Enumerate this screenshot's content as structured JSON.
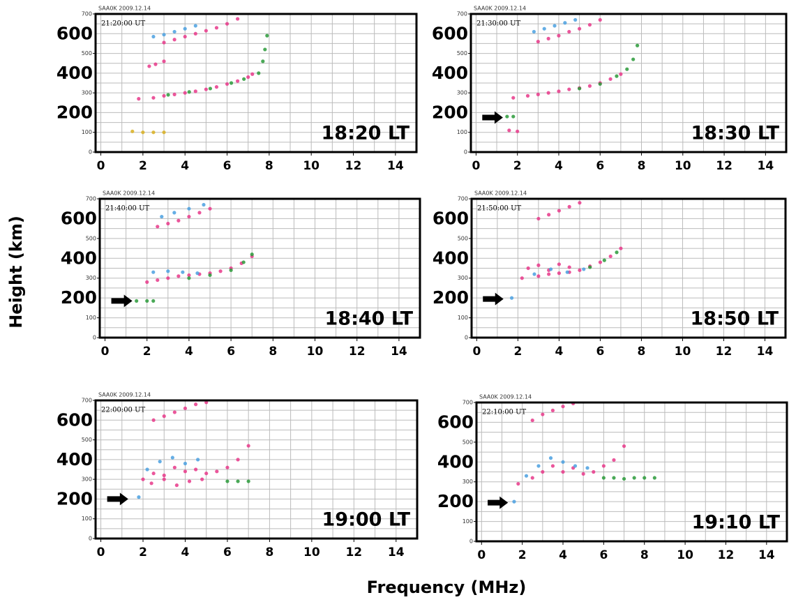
{
  "y_label": "Height (km)",
  "x_label": "Frequency (MHz)",
  "chart_data": [
    {
      "type": "scatter",
      "station": "SAA0K 2009.12.14",
      "ut": "21:20:00 UT",
      "lt": "18:20 LT",
      "xlim": [
        -0.25,
        15
      ],
      "ylim": [
        0,
        700
      ],
      "xticks": [
        0,
        2,
        4,
        6,
        8,
        10,
        12,
        14
      ],
      "yticks": [
        0,
        100,
        300,
        500,
        700
      ],
      "major_yticks": [
        200,
        400,
        600
      ],
      "xgrid": [
        0,
        1,
        2,
        3,
        4,
        5,
        6,
        7,
        8,
        9,
        10,
        11,
        12,
        13,
        14,
        15
      ],
      "ygrid": [
        50,
        100,
        150,
        200,
        250,
        300,
        350,
        400,
        450,
        500,
        550,
        600,
        650
      ],
      "series": [
        {
          "color": "#e8388a",
          "x": [
            1.8,
            2.5,
            3,
            3.5,
            4,
            4.5,
            5,
            5.5,
            6,
            6.5,
            7,
            7.2
          ],
          "y": [
            270,
            275,
            285,
            292,
            300,
            308,
            318,
            330,
            345,
            360,
            380,
            395
          ]
        },
        {
          "color": "#2a9a3a",
          "x": [
            3.2,
            4.2,
            5.2,
            6.2,
            6.8,
            7.5,
            7.7,
            7.8,
            7.9
          ],
          "y": [
            290,
            305,
            322,
            350,
            370,
            400,
            460,
            520,
            590
          ]
        },
        {
          "color": "#e8388a",
          "x": [
            3,
            3.5,
            4,
            4.5,
            5,
            5.5,
            6,
            6.5
          ],
          "y": [
            555,
            570,
            585,
            600,
            615,
            630,
            650,
            675
          ]
        },
        {
          "color": "#4aa0e0",
          "x": [
            2.5,
            3,
            3.5,
            4,
            4.5
          ],
          "y": [
            585,
            595,
            610,
            625,
            640
          ]
        },
        {
          "color": "#e8388a",
          "x": [
            2.3,
            2.6,
            3
          ],
          "y": [
            435,
            445,
            460
          ]
        },
        {
          "color": "#d9b020",
          "x": [
            1.5,
            2,
            2.5,
            3
          ],
          "y": [
            105,
            100,
            100,
            100
          ]
        }
      ]
    },
    {
      "type": "scatter",
      "station": "SAA0K 2009.12.14",
      "ut": "21:30:00 UT",
      "lt": "18:30 LT",
      "xlim": [
        -0.25,
        15
      ],
      "ylim": [
        0,
        700
      ],
      "xticks": [
        0,
        2,
        4,
        6,
        8,
        10,
        12,
        14
      ],
      "yticks": [
        0,
        100,
        300,
        500,
        700
      ],
      "major_yticks": [
        200,
        400,
        600
      ],
      "xgrid": [
        0,
        1,
        2,
        3,
        4,
        5,
        6,
        7,
        8,
        9,
        10,
        11,
        12,
        13,
        14,
        15
      ],
      "ygrid": [
        50,
        100,
        150,
        200,
        250,
        300,
        350,
        400,
        450,
        500,
        550,
        600,
        650
      ],
      "arrow_y": 175,
      "series": [
        {
          "color": "#e8388a",
          "x": [
            1.8,
            2.5,
            3,
            3.5,
            4,
            4.5,
            5,
            5.5,
            6,
            6.5,
            7
          ],
          "y": [
            275,
            285,
            292,
            300,
            308,
            318,
            325,
            335,
            350,
            370,
            395
          ]
        },
        {
          "color": "#2a9a3a",
          "x": [
            5,
            6,
            6.8,
            7.3,
            7.6,
            7.8
          ],
          "y": [
            322,
            345,
            385,
            420,
            470,
            540
          ]
        },
        {
          "color": "#e8388a",
          "x": [
            3,
            3.5,
            4,
            4.5,
            5,
            5.5,
            6
          ],
          "y": [
            560,
            575,
            590,
            610,
            625,
            645,
            670
          ]
        },
        {
          "color": "#4aa0e0",
          "x": [
            2.8,
            3.3,
            3.8,
            4.3,
            4.8
          ],
          "y": [
            610,
            625,
            640,
            655,
            670
          ]
        },
        {
          "color": "#2a9a3a",
          "x": [
            1.5,
            1.8
          ],
          "y": [
            180,
            180
          ]
        },
        {
          "color": "#e8388a",
          "x": [
            1.6,
            2
          ],
          "y": [
            110,
            105
          ]
        }
      ]
    },
    {
      "type": "scatter",
      "station": "SAA0K 2009.12.14",
      "ut": "21:40:00 UT",
      "lt": "18:40 LT",
      "xlim": [
        -0.25,
        15
      ],
      "ylim": [
        0,
        700
      ],
      "xticks": [
        0,
        2,
        4,
        6,
        8,
        10,
        12,
        14
      ],
      "yticks": [
        0,
        100,
        300,
        500,
        700
      ],
      "major_yticks": [
        200,
        400,
        600
      ],
      "xgrid": [
        0,
        1,
        2,
        3,
        4,
        5,
        6,
        7,
        8,
        9,
        10,
        11,
        12,
        13,
        14,
        15
      ],
      "ygrid": [
        50,
        100,
        150,
        200,
        250,
        300,
        350,
        400,
        450,
        500,
        550,
        600,
        650
      ],
      "arrow_y": 185,
      "series": [
        {
          "color": "#e8388a",
          "x": [
            2,
            2.5,
            3,
            3.5,
            4,
            4.5,
            5,
            5.5,
            6,
            6.5,
            7
          ],
          "y": [
            280,
            290,
            300,
            310,
            315,
            320,
            325,
            335,
            350,
            375,
            410
          ]
        },
        {
          "color": "#4aa0e0",
          "x": [
            2.3,
            3,
            3.7,
            4.4
          ],
          "y": [
            330,
            335,
            330,
            325
          ]
        },
        {
          "color": "#2a9a3a",
          "x": [
            4,
            5,
            6,
            6.6,
            7
          ],
          "y": [
            300,
            315,
            340,
            380,
            420
          ]
        },
        {
          "color": "#e8388a",
          "x": [
            2.5,
            3,
            3.5,
            4,
            4.5,
            5
          ],
          "y": [
            560,
            575,
            590,
            610,
            630,
            650
          ]
        },
        {
          "color": "#4aa0e0",
          "x": [
            2.7,
            3.3,
            4,
            4.7
          ],
          "y": [
            610,
            630,
            650,
            670
          ]
        },
        {
          "color": "#2a9a3a",
          "x": [
            1.5,
            2,
            2.3
          ],
          "y": [
            185,
            185,
            185
          ]
        }
      ]
    },
    {
      "type": "scatter",
      "station": "SAA0K 2009.12.14",
      "ut": "21:50:00 UT",
      "lt": "18:50 LT",
      "xlim": [
        -0.25,
        15
      ],
      "ylim": [
        0,
        700
      ],
      "xticks": [
        0,
        2,
        4,
        6,
        8,
        10,
        12,
        14
      ],
      "yticks": [
        0,
        100,
        300,
        500,
        700
      ],
      "major_yticks": [
        200,
        400,
        600
      ],
      "xgrid": [
        0,
        1,
        2,
        3,
        4,
        5,
        6,
        7,
        8,
        9,
        10,
        11,
        12,
        13,
        14,
        15
      ],
      "ygrid": [
        50,
        100,
        150,
        200,
        250,
        300,
        350,
        400,
        450,
        500,
        550,
        600,
        650
      ],
      "arrow_y": 195,
      "series": [
        {
          "color": "#e8388a",
          "x": [
            2.2,
            3,
            3.5,
            4,
            4.5,
            5,
            5.5,
            6,
            6.5,
            7
          ],
          "y": [
            300,
            310,
            320,
            325,
            330,
            340,
            360,
            380,
            410,
            450
          ]
        },
        {
          "color": "#e8388a",
          "x": [
            2.5,
            3,
            3.5,
            4,
            4.5
          ],
          "y": [
            350,
            365,
            340,
            370,
            355
          ]
        },
        {
          "color": "#4aa0e0",
          "x": [
            2.8,
            3.6,
            4.4,
            5.2
          ],
          "y": [
            320,
            345,
            330,
            345
          ]
        },
        {
          "color": "#2a9a3a",
          "x": [
            5.5,
            6.2,
            6.8
          ],
          "y": [
            355,
            390,
            430
          ]
        },
        {
          "color": "#e8388a",
          "x": [
            3,
            3.5,
            4,
            4.5,
            5
          ],
          "y": [
            600,
            620,
            640,
            660,
            680
          ]
        },
        {
          "color": "#4aa0e0",
          "x": [
            1.7
          ],
          "y": [
            200
          ]
        }
      ]
    },
    {
      "type": "scatter",
      "station": "SAA0K 2009.12.14",
      "ut": "22:00:00 UT",
      "lt": "19:00 LT",
      "xlim": [
        -0.25,
        15
      ],
      "ylim": [
        0,
        700
      ],
      "xticks": [
        0,
        2,
        4,
        6,
        8,
        10,
        12,
        14
      ],
      "yticks": [
        0,
        100,
        300,
        500,
        700
      ],
      "major_yticks": [
        200,
        400,
        600
      ],
      "xgrid": [
        0,
        1,
        2,
        3,
        4,
        5,
        6,
        7,
        8,
        9,
        10,
        11,
        12,
        13,
        14,
        15
      ],
      "ygrid": [
        50,
        100,
        150,
        200,
        250,
        300,
        350,
        400,
        450,
        500,
        550,
        600,
        650
      ],
      "arrow_y": 200,
      "series": [
        {
          "color": "#e8388a",
          "x": [
            2,
            2.5,
            3,
            3.5,
            4,
            4.5,
            5,
            5.5,
            6,
            6.5,
            7
          ],
          "y": [
            300,
            330,
            320,
            360,
            340,
            350,
            330,
            340,
            360,
            400,
            470
          ]
        },
        {
          "color": "#4aa0e0",
          "x": [
            2.2,
            2.8,
            3.4,
            4,
            4.6
          ],
          "y": [
            350,
            390,
            410,
            380,
            400
          ]
        },
        {
          "color": "#e8388a",
          "x": [
            2.4,
            3,
            3.6,
            4.2,
            4.8
          ],
          "y": [
            280,
            300,
            270,
            290,
            300
          ]
        },
        {
          "color": "#e8388a",
          "x": [
            2.5,
            3,
            3.5,
            4,
            4.5,
            5
          ],
          "y": [
            600,
            620,
            640,
            660,
            680,
            690
          ]
        },
        {
          "color": "#2a9a3a",
          "x": [
            6,
            6.5,
            7
          ],
          "y": [
            290,
            290,
            290
          ]
        },
        {
          "color": "#4aa0e0",
          "x": [
            1.8
          ],
          "y": [
            210
          ]
        }
      ]
    },
    {
      "type": "scatter",
      "station": "SAA0K 2009.12.14",
      "ut": "22:10:00 UT",
      "lt": "19:10 LT",
      "xlim": [
        -0.25,
        15
      ],
      "ylim": [
        0,
        700
      ],
      "xticks": [
        0,
        2,
        4,
        6,
        8,
        10,
        12,
        14
      ],
      "yticks": [
        0,
        100,
        300,
        500,
        700
      ],
      "major_yticks": [
        200,
        400,
        600
      ],
      "xgrid": [
        0,
        1,
        2,
        3,
        4,
        5,
        6,
        7,
        8,
        9,
        10,
        11,
        12,
        13,
        14,
        15
      ],
      "ygrid": [
        50,
        100,
        150,
        200,
        250,
        300,
        350,
        400,
        450,
        500,
        550,
        600,
        650
      ],
      "arrow_y": 195,
      "series": [
        {
          "color": "#e8388a",
          "x": [
            1.8,
            2.5,
            3,
            3.5,
            4,
            4.5,
            5,
            5.5,
            6,
            6.5,
            7
          ],
          "y": [
            290,
            320,
            350,
            380,
            350,
            370,
            340,
            350,
            380,
            410,
            480
          ]
        },
        {
          "color": "#4aa0e0",
          "x": [
            2.2,
            2.8,
            3.4,
            4,
            4.6,
            5.2
          ],
          "y": [
            330,
            380,
            420,
            400,
            380,
            370
          ]
        },
        {
          "color": "#2a9a3a",
          "x": [
            6,
            6.5,
            7,
            7.5,
            8,
            8.5
          ],
          "y": [
            320,
            320,
            315,
            320,
            320,
            320
          ]
        },
        {
          "color": "#e8388a",
          "x": [
            2.5,
            3,
            3.5,
            4,
            4.5
          ],
          "y": [
            610,
            640,
            660,
            680,
            695
          ]
        },
        {
          "color": "#4aa0e0",
          "x": [
            1.6
          ],
          "y": [
            200
          ]
        }
      ]
    }
  ]
}
